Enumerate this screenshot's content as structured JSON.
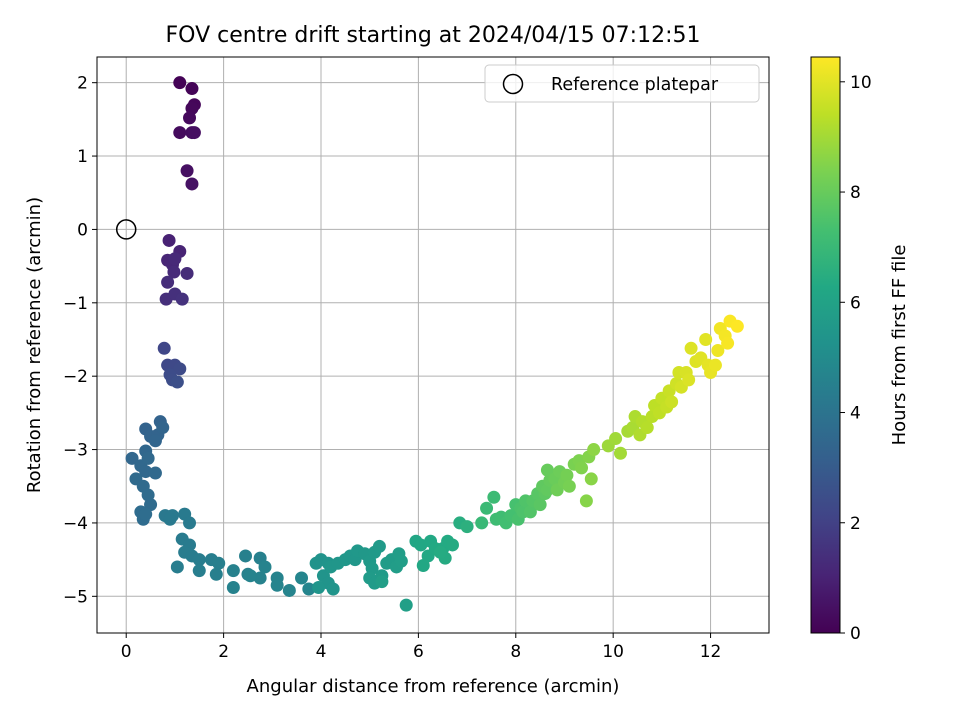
{
  "chart_data": {
    "type": "scatter",
    "title": "FOV centre drift starting at 2024/04/15 07:12:51",
    "xlabel": "Angular distance from reference (arcmin)",
    "ylabel": "Rotation from reference (arcmin)",
    "colorbar_label": "Hours from first FF file",
    "xlim": [
      -0.6,
      13.2
    ],
    "ylim": [
      -5.5,
      2.35
    ],
    "clim": [
      0,
      10.45
    ],
    "colormap": "viridis",
    "grid": true,
    "legend_position": "top-right",
    "x_ticks": [
      0,
      2,
      4,
      6,
      8,
      10,
      12
    ],
    "y_ticks": [
      -5,
      -4,
      -3,
      -2,
      -1,
      0,
      1,
      2
    ],
    "colorbar_ticks": [
      0,
      2,
      4,
      6,
      8,
      10
    ],
    "reference": {
      "label": "Reference platepar",
      "x": 0,
      "y": 0
    },
    "points": [
      [
        1.1,
        2.0,
        0.05
      ],
      [
        1.35,
        1.92,
        0.1
      ],
      [
        1.4,
        1.7,
        0.15
      ],
      [
        1.35,
        1.65,
        0.2
      ],
      [
        1.3,
        1.52,
        0.25
      ],
      [
        1.1,
        1.32,
        0.3
      ],
      [
        1.35,
        1.32,
        0.35
      ],
      [
        1.4,
        1.32,
        0.4
      ],
      [
        1.25,
        0.8,
        0.45
      ],
      [
        1.35,
        0.62,
        0.5
      ],
      [
        0.88,
        -0.15,
        1.0
      ],
      [
        1.1,
        -0.3,
        1.05
      ],
      [
        0.85,
        -0.42,
        1.1
      ],
      [
        0.95,
        -0.48,
        1.15
      ],
      [
        1.0,
        -0.4,
        1.2
      ],
      [
        0.98,
        -0.58,
        1.25
      ],
      [
        1.25,
        -0.6,
        1.3
      ],
      [
        0.85,
        -0.72,
        1.35
      ],
      [
        0.82,
        -0.95,
        1.4
      ],
      [
        1.0,
        -0.88,
        1.45
      ],
      [
        1.15,
        -0.95,
        1.5
      ],
      [
        0.78,
        -1.62,
        2.2
      ],
      [
        0.85,
        -1.85,
        2.25
      ],
      [
        1.0,
        -1.85,
        2.3
      ],
      [
        1.1,
        -1.9,
        2.35
      ],
      [
        0.9,
        -1.98,
        2.4
      ],
      [
        0.95,
        -2.05,
        2.45
      ],
      [
        1.05,
        -2.08,
        2.5
      ],
      [
        0.7,
        -2.62,
        3.3
      ],
      [
        0.4,
        -2.72,
        3.32
      ],
      [
        0.5,
        -2.82,
        3.34
      ],
      [
        0.65,
        -2.8,
        3.36
      ],
      [
        0.75,
        -2.7,
        3.38
      ],
      [
        0.6,
        -2.88,
        3.4
      ],
      [
        0.12,
        -3.12,
        3.45
      ],
      [
        0.4,
        -3.02,
        3.48
      ],
      [
        0.3,
        -3.22,
        3.5
      ],
      [
        0.4,
        -3.3,
        3.52
      ],
      [
        0.6,
        -3.32,
        3.54
      ],
      [
        0.45,
        -3.12,
        3.56
      ],
      [
        0.2,
        -3.4,
        3.58
      ],
      [
        0.35,
        -3.5,
        3.6
      ],
      [
        0.45,
        -3.62,
        3.62
      ],
      [
        0.5,
        -3.75,
        3.64
      ],
      [
        0.3,
        -3.85,
        3.66
      ],
      [
        0.35,
        -3.95,
        3.68
      ],
      [
        0.4,
        -3.88,
        3.7
      ],
      [
        0.8,
        -3.9,
        4.2
      ],
      [
        0.95,
        -3.9,
        4.22
      ],
      [
        0.9,
        -3.95,
        4.24
      ],
      [
        1.2,
        -3.88,
        4.26
      ],
      [
        1.3,
        -4.0,
        4.28
      ],
      [
        1.15,
        -4.22,
        4.3
      ],
      [
        1.3,
        -4.3,
        4.32
      ],
      [
        1.2,
        -4.4,
        4.34
      ],
      [
        1.35,
        -4.45,
        4.36
      ],
      [
        1.5,
        -4.5,
        4.38
      ],
      [
        1.05,
        -4.6,
        4.4
      ],
      [
        1.5,
        -4.65,
        4.42
      ],
      [
        1.75,
        -4.5,
        4.44
      ],
      [
        1.9,
        -4.55,
        4.46
      ],
      [
        1.85,
        -4.7,
        4.48
      ],
      [
        2.45,
        -4.45,
        4.5
      ],
      [
        2.75,
        -4.48,
        4.52
      ],
      [
        2.2,
        -4.65,
        4.54
      ],
      [
        2.5,
        -4.7,
        4.56
      ],
      [
        2.75,
        -4.75,
        4.58
      ],
      [
        2.2,
        -4.88,
        4.6
      ],
      [
        2.55,
        -4.72,
        4.62
      ],
      [
        2.85,
        -4.6,
        4.64
      ],
      [
        3.1,
        -4.75,
        4.66
      ],
      [
        3.1,
        -4.85,
        4.68
      ],
      [
        3.35,
        -4.92,
        4.7
      ],
      [
        3.6,
        -4.75,
        4.72
      ],
      [
        3.75,
        -4.9,
        4.74
      ],
      [
        3.9,
        -4.55,
        5.3
      ],
      [
        4.0,
        -4.5,
        5.32
      ],
      [
        4.15,
        -4.55,
        5.34
      ],
      [
        4.05,
        -4.72,
        5.36
      ],
      [
        4.15,
        -4.82,
        5.38
      ],
      [
        3.95,
        -4.88,
        5.4
      ],
      [
        4.25,
        -4.9,
        5.42
      ],
      [
        4.2,
        -4.6,
        5.44
      ],
      [
        4.35,
        -4.55,
        5.46
      ],
      [
        4.5,
        -4.5,
        5.48
      ],
      [
        4.6,
        -4.45,
        5.5
      ],
      [
        4.7,
        -4.5,
        5.52
      ],
      [
        4.75,
        -4.38,
        5.54
      ],
      [
        4.9,
        -4.42,
        5.56
      ],
      [
        5.0,
        -4.52,
        5.58
      ],
      [
        5.1,
        -4.4,
        5.6
      ],
      [
        5.2,
        -4.32,
        5.62
      ],
      [
        5.05,
        -4.62,
        5.64
      ],
      [
        5.0,
        -4.75,
        5.66
      ],
      [
        5.1,
        -4.82,
        5.68
      ],
      [
        5.25,
        -4.72,
        5.7
      ],
      [
        5.35,
        -4.55,
        5.72
      ],
      [
        5.45,
        -4.5,
        5.74
      ],
      [
        5.55,
        -4.6,
        5.76
      ],
      [
        5.6,
        -4.42,
        5.78
      ],
      [
        5.65,
        -4.52,
        5.8
      ],
      [
        5.25,
        -4.8,
        5.82
      ],
      [
        5.75,
        -5.12,
        5.84
      ],
      [
        5.95,
        -4.25,
        6.2
      ],
      [
        6.05,
        -4.3,
        6.22
      ],
      [
        6.1,
        -4.58,
        6.24
      ],
      [
        6.2,
        -4.45,
        6.26
      ],
      [
        6.25,
        -4.25,
        6.28
      ],
      [
        6.35,
        -4.35,
        6.3
      ],
      [
        6.5,
        -4.35,
        6.32
      ],
      [
        6.6,
        -4.25,
        6.34
      ],
      [
        6.7,
        -4.3,
        6.36
      ],
      [
        6.55,
        -4.48,
        6.38
      ],
      [
        6.45,
        -4.4,
        6.4
      ],
      [
        6.85,
        -4.0,
        6.5
      ],
      [
        7.0,
        -4.05,
        6.6
      ],
      [
        7.3,
        -4.0,
        7.0
      ],
      [
        7.4,
        -3.8,
        7.05
      ],
      [
        7.55,
        -3.65,
        7.1
      ],
      [
        7.6,
        -3.95,
        7.15
      ],
      [
        7.7,
        -3.92,
        7.2
      ],
      [
        7.8,
        -4.0,
        7.25
      ],
      [
        7.9,
        -3.9,
        7.3
      ],
      [
        8.0,
        -3.75,
        7.35
      ],
      [
        8.05,
        -3.95,
        7.4
      ],
      [
        8.1,
        -3.8,
        7.45
      ],
      [
        8.15,
        -3.85,
        7.5
      ],
      [
        8.2,
        -3.7,
        7.55
      ],
      [
        8.3,
        -3.85,
        7.6
      ],
      [
        8.35,
        -3.7,
        7.65
      ],
      [
        8.45,
        -3.6,
        7.7
      ],
      [
        8.5,
        -3.75,
        7.75
      ],
      [
        8.6,
        -3.6,
        7.8
      ],
      [
        8.55,
        -3.5,
        7.85
      ],
      [
        8.65,
        -3.55,
        7.9
      ],
      [
        8.7,
        -3.42,
        7.95
      ],
      [
        8.65,
        -3.28,
        8.0
      ],
      [
        8.8,
        -3.4,
        8.05
      ],
      [
        8.9,
        -3.3,
        8.1
      ],
      [
        8.85,
        -3.55,
        8.15
      ],
      [
        9.0,
        -3.45,
        8.2
      ],
      [
        9.05,
        -3.35,
        8.25
      ],
      [
        9.1,
        -3.5,
        8.3
      ],
      [
        9.2,
        -3.2,
        8.35
      ],
      [
        9.3,
        -3.15,
        8.4
      ],
      [
        9.35,
        -3.25,
        8.45
      ],
      [
        9.5,
        -3.1,
        8.5
      ],
      [
        9.45,
        -3.7,
        8.55
      ],
      [
        9.55,
        -3.4,
        8.6
      ],
      [
        9.6,
        -3.0,
        8.65
      ],
      [
        9.9,
        -2.95,
        8.9
      ],
      [
        10.05,
        -2.85,
        8.95
      ],
      [
        10.15,
        -3.05,
        9.0
      ],
      [
        10.3,
        -2.75,
        9.05
      ],
      [
        10.4,
        -2.7,
        9.1
      ],
      [
        10.45,
        -2.55,
        9.15
      ],
      [
        10.55,
        -2.8,
        9.2
      ],
      [
        10.6,
        -2.62,
        9.25
      ],
      [
        10.7,
        -2.7,
        9.3
      ],
      [
        10.8,
        -2.55,
        9.35
      ],
      [
        10.85,
        -2.4,
        9.4
      ],
      [
        10.95,
        -2.5,
        9.45
      ],
      [
        11.0,
        -2.3,
        9.5
      ],
      [
        11.1,
        -2.42,
        9.55
      ],
      [
        11.15,
        -2.2,
        9.6
      ],
      [
        11.2,
        -2.35,
        9.65
      ],
      [
        11.3,
        -2.1,
        9.7
      ],
      [
        11.35,
        -1.95,
        9.75
      ],
      [
        11.4,
        -2.15,
        9.8
      ],
      [
        11.5,
        -1.95,
        9.85
      ],
      [
        11.55,
        -2.05,
        9.9
      ],
      [
        11.6,
        -1.62,
        9.92
      ],
      [
        11.7,
        -1.8,
        9.95
      ],
      [
        11.8,
        -1.75,
        9.97
      ],
      [
        11.9,
        -1.5,
        10.0
      ],
      [
        11.95,
        -1.85,
        10.05
      ],
      [
        12.0,
        -1.95,
        10.1
      ],
      [
        12.1,
        -1.85,
        10.15
      ],
      [
        12.15,
        -1.65,
        10.2
      ],
      [
        12.2,
        -1.35,
        10.25
      ],
      [
        12.3,
        -1.45,
        10.3
      ],
      [
        12.35,
        -1.55,
        10.35
      ],
      [
        12.4,
        -1.25,
        10.4
      ],
      [
        12.55,
        -1.32,
        10.45
      ]
    ]
  }
}
